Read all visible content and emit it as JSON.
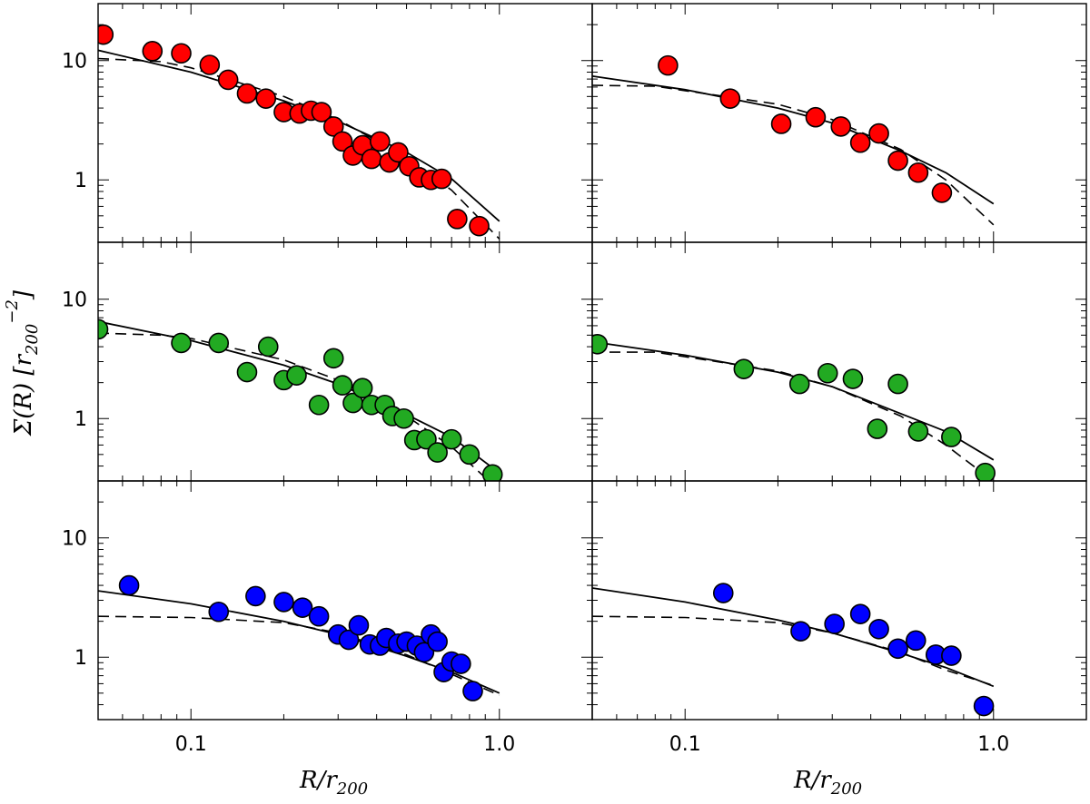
{
  "figure": {
    "ylabel": "Σ(R)  [r",
    "ylabel_sub": "200",
    "ylabel_sup": "−2",
    "ylabel_end": "]",
    "xlabel_left": "R/r",
    "xlabel_left_sub": "200",
    "xlabel_right": "R/r",
    "xlabel_right_sub": "200",
    "colors": {
      "red": "#ff0000",
      "green": "#22aa22",
      "blue": "#0000ff",
      "frame": "#000000"
    }
  },
  "chart_data": [
    {
      "type": "scatter",
      "row": 0,
      "col": 0,
      "color": "red",
      "xscale": "log",
      "yscale": "log",
      "xlim": [
        0.05,
        2.0
      ],
      "ylim": [
        0.3,
        30
      ],
      "xticks": [],
      "yticks": [
        "10",
        "1"
      ],
      "points": [
        [
          0.052,
          16.5
        ],
        [
          0.075,
          12
        ],
        [
          0.093,
          11.5
        ],
        [
          0.115,
          9.2
        ],
        [
          0.132,
          6.9
        ],
        [
          0.152,
          5.3
        ],
        [
          0.175,
          4.8
        ],
        [
          0.2,
          3.7
        ],
        [
          0.225,
          3.6
        ],
        [
          0.245,
          3.8
        ],
        [
          0.265,
          3.7
        ],
        [
          0.29,
          2.8
        ],
        [
          0.31,
          2.1
        ],
        [
          0.335,
          1.6
        ],
        [
          0.36,
          1.95
        ],
        [
          0.385,
          1.5
        ],
        [
          0.41,
          2.1
        ],
        [
          0.44,
          1.4
        ],
        [
          0.47,
          1.7
        ],
        [
          0.51,
          1.3
        ],
        [
          0.55,
          1.05
        ],
        [
          0.6,
          1.0
        ],
        [
          0.65,
          1.02
        ],
        [
          0.73,
          0.47
        ],
        [
          0.86,
          0.41
        ]
      ],
      "solid": [
        [
          0.05,
          12.2
        ],
        [
          0.1,
          8.0
        ],
        [
          0.2,
          4.6
        ],
        [
          0.3,
          3.1
        ],
        [
          0.5,
          1.7
        ],
        [
          0.7,
          1.02
        ],
        [
          1.0,
          0.45
        ]
      ],
      "dashed": [
        [
          0.05,
          10.4
        ],
        [
          0.08,
          9.8
        ],
        [
          0.1,
          8.7
        ],
        [
          0.2,
          5.0
        ],
        [
          0.3,
          3.2
        ],
        [
          0.5,
          1.55
        ],
        [
          0.7,
          0.82
        ],
        [
          1.0,
          0.32
        ]
      ]
    },
    {
      "type": "scatter",
      "row": 0,
      "col": 1,
      "color": "red",
      "xscale": "log",
      "yscale": "log",
      "xlim": [
        0.05,
        2.0
      ],
      "ylim": [
        0.3,
        30
      ],
      "xticks": [],
      "yticks": [],
      "points": [
        [
          0.088,
          9.1
        ],
        [
          0.14,
          4.8
        ],
        [
          0.205,
          2.95
        ],
        [
          0.265,
          3.35
        ],
        [
          0.32,
          2.8
        ],
        [
          0.37,
          2.05
        ],
        [
          0.425,
          2.45
        ],
        [
          0.49,
          1.45
        ],
        [
          0.57,
          1.15
        ],
        [
          0.68,
          0.78
        ]
      ],
      "solid": [
        [
          0.05,
          7.4
        ],
        [
          0.1,
          5.7
        ],
        [
          0.2,
          4.0
        ],
        [
          0.3,
          3.0
        ],
        [
          0.5,
          1.75
        ],
        [
          0.7,
          1.15
        ],
        [
          1.0,
          0.63
        ]
      ],
      "dashed": [
        [
          0.05,
          6.2
        ],
        [
          0.08,
          6.1
        ],
        [
          0.1,
          5.6
        ],
        [
          0.2,
          4.3
        ],
        [
          0.3,
          3.2
        ],
        [
          0.5,
          1.8
        ],
        [
          0.7,
          1.0
        ],
        [
          1.0,
          0.42
        ]
      ]
    },
    {
      "type": "scatter",
      "row": 1,
      "col": 0,
      "color": "green",
      "xscale": "log",
      "yscale": "log",
      "xlim": [
        0.05,
        2.0
      ],
      "ylim": [
        0.3,
        30
      ],
      "xticks": [],
      "yticks": [
        "10",
        "1"
      ],
      "points": [
        [
          0.05,
          5.6
        ],
        [
          0.093,
          4.3
        ],
        [
          0.123,
          4.3
        ],
        [
          0.152,
          2.45
        ],
        [
          0.178,
          4.0
        ],
        [
          0.2,
          2.1
        ],
        [
          0.22,
          2.3
        ],
        [
          0.26,
          1.3
        ],
        [
          0.29,
          3.2
        ],
        [
          0.31,
          1.9
        ],
        [
          0.335,
          1.35
        ],
        [
          0.36,
          1.8
        ],
        [
          0.385,
          1.3
        ],
        [
          0.425,
          1.3
        ],
        [
          0.45,
          1.05
        ],
        [
          0.49,
          1.0
        ],
        [
          0.53,
          0.66
        ],
        [
          0.58,
          0.67
        ],
        [
          0.63,
          0.52
        ],
        [
          0.7,
          0.67
        ],
        [
          0.8,
          0.5
        ],
        [
          0.95,
          0.34
        ]
      ],
      "solid": [
        [
          0.05,
          6.5
        ],
        [
          0.1,
          4.5
        ],
        [
          0.2,
          2.8
        ],
        [
          0.3,
          1.95
        ],
        [
          0.5,
          1.08
        ],
        [
          0.7,
          0.7
        ],
        [
          1.0,
          0.35
        ]
      ],
      "dashed": [
        [
          0.05,
          5.2
        ],
        [
          0.08,
          5.0
        ],
        [
          0.1,
          4.7
        ],
        [
          0.2,
          3.1
        ],
        [
          0.3,
          2.1
        ],
        [
          0.5,
          1.05
        ],
        [
          0.7,
          0.58
        ],
        [
          0.9,
          0.32
        ]
      ]
    },
    {
      "type": "scatter",
      "row": 1,
      "col": 1,
      "color": "green",
      "xscale": "log",
      "yscale": "log",
      "xlim": [
        0.05,
        2.0
      ],
      "ylim": [
        0.3,
        30
      ],
      "xticks": [],
      "yticks": [],
      "points": [
        [
          0.052,
          4.2
        ],
        [
          0.155,
          2.6
        ],
        [
          0.235,
          1.95
        ],
        [
          0.29,
          2.4
        ],
        [
          0.35,
          2.15
        ],
        [
          0.42,
          0.82
        ],
        [
          0.49,
          1.95
        ],
        [
          0.57,
          0.78
        ],
        [
          0.73,
          0.7
        ],
        [
          0.94,
          0.35
        ]
      ],
      "solid": [
        [
          0.05,
          4.4
        ],
        [
          0.1,
          3.4
        ],
        [
          0.2,
          2.45
        ],
        [
          0.3,
          1.85
        ],
        [
          0.5,
          1.1
        ],
        [
          0.7,
          0.78
        ],
        [
          1.0,
          0.45
        ]
      ],
      "dashed": [
        [
          0.05,
          3.6
        ],
        [
          0.08,
          3.6
        ],
        [
          0.1,
          3.3
        ],
        [
          0.2,
          2.5
        ],
        [
          0.3,
          1.85
        ],
        [
          0.5,
          1.05
        ],
        [
          0.7,
          0.6
        ],
        [
          0.95,
          0.33
        ]
      ]
    },
    {
      "type": "scatter",
      "row": 2,
      "col": 0,
      "color": "blue",
      "xscale": "log",
      "yscale": "log",
      "xlim": [
        0.05,
        2.0
      ],
      "ylim": [
        0.3,
        30
      ],
      "xticks": [
        "0.1",
        "1.0"
      ],
      "yticks": [
        "10",
        "1"
      ],
      "points": [
        [
          0.063,
          4.0
        ],
        [
          0.123,
          2.4
        ],
        [
          0.162,
          3.25
        ],
        [
          0.2,
          2.9
        ],
        [
          0.23,
          2.6
        ],
        [
          0.26,
          2.2
        ],
        [
          0.3,
          1.55
        ],
        [
          0.325,
          1.4
        ],
        [
          0.35,
          1.85
        ],
        [
          0.38,
          1.28
        ],
        [
          0.41,
          1.25
        ],
        [
          0.43,
          1.45
        ],
        [
          0.47,
          1.3
        ],
        [
          0.5,
          1.35
        ],
        [
          0.54,
          1.25
        ],
        [
          0.57,
          1.1
        ],
        [
          0.6,
          1.55
        ],
        [
          0.63,
          1.35
        ],
        [
          0.66,
          0.75
        ],
        [
          0.7,
          0.92
        ],
        [
          0.75,
          0.88
        ],
        [
          0.82,
          0.52
        ]
      ],
      "solid": [
        [
          0.05,
          3.6
        ],
        [
          0.1,
          2.8
        ],
        [
          0.2,
          2.0
        ],
        [
          0.3,
          1.55
        ],
        [
          0.5,
          1.02
        ],
        [
          0.7,
          0.75
        ],
        [
          1.0,
          0.5
        ]
      ],
      "dashed": [
        [
          0.05,
          2.2
        ],
        [
          0.1,
          2.15
        ],
        [
          0.2,
          1.95
        ],
        [
          0.3,
          1.6
        ],
        [
          0.5,
          1.05
        ],
        [
          0.7,
          0.72
        ],
        [
          1.0,
          0.48
        ]
      ]
    },
    {
      "type": "scatter",
      "row": 2,
      "col": 1,
      "color": "blue",
      "xscale": "log",
      "yscale": "log",
      "xlim": [
        0.05,
        2.0
      ],
      "ylim": [
        0.3,
        30
      ],
      "xticks": [
        "0.1",
        "1.0"
      ],
      "yticks": [],
      "points": [
        [
          0.133,
          3.45
        ],
        [
          0.237,
          1.65
        ],
        [
          0.305,
          1.9
        ],
        [
          0.37,
          2.3
        ],
        [
          0.425,
          1.72
        ],
        [
          0.49,
          1.18
        ],
        [
          0.56,
          1.38
        ],
        [
          0.65,
          1.05
        ],
        [
          0.73,
          1.03
        ],
        [
          0.93,
          0.39
        ]
      ],
      "solid": [
        [
          0.05,
          3.8
        ],
        [
          0.1,
          2.9
        ],
        [
          0.2,
          2.05
        ],
        [
          0.3,
          1.6
        ],
        [
          0.5,
          1.08
        ],
        [
          0.7,
          0.82
        ],
        [
          1.0,
          0.57
        ]
      ],
      "dashed": [
        [
          0.05,
          2.2
        ],
        [
          0.1,
          2.15
        ],
        [
          0.2,
          1.95
        ],
        [
          0.3,
          1.6
        ],
        [
          0.5,
          1.1
        ],
        [
          0.7,
          0.78
        ],
        [
          1.0,
          0.58
        ]
      ]
    }
  ]
}
